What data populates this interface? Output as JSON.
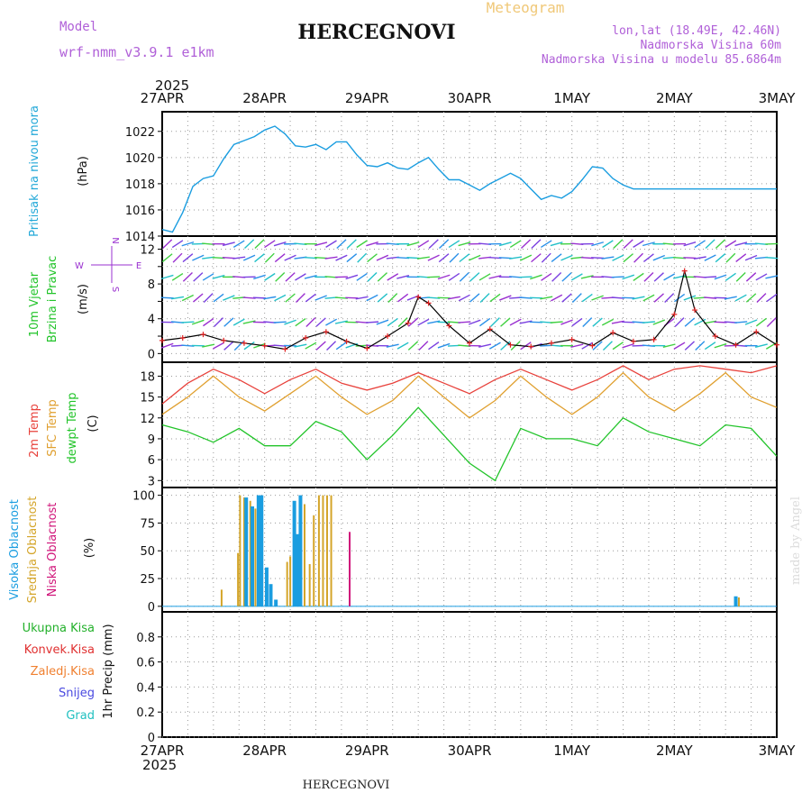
{
  "header": {
    "station_title": "HERCEGNOVI",
    "meteogram_label": "Meteogram",
    "model_label": "Model",
    "model_name": "wrf-nmm_v3.9.1 e1km",
    "coords": "lon,lat (18.49E, 42.46N)",
    "elevation": "Nadmorska Visina 60m",
    "model_elevation": "Nadmorska Visina u modelu 85.6864m"
  },
  "footer": {
    "station_title": "HERCEGNOVI",
    "credit": "made by Angel"
  },
  "time_axis": {
    "year": "2025",
    "labels": [
      "27APR",
      "28APR",
      "29APR",
      "30APR",
      "1MAY",
      "2MAY",
      "3MAY"
    ]
  },
  "colors": {
    "pressure": "#1a9de0",
    "temp2m": "#e8423c",
    "sfc_temp": "#e0a030",
    "dewpt": "#22c42a",
    "cloud_high": "#1a9de0",
    "cloud_mid": "#d4a52a",
    "cloud_low": "#d0157a",
    "wind_speed": "#e02020",
    "precip_total": "#22b02a",
    "precip_conv": "#e03030",
    "precip_frozen": "#f08030",
    "snow": "#4a4ae0",
    "grad": "#20c0c0",
    "wind_label": "#9a30d0"
  },
  "chart_data": [
    {
      "type": "line",
      "ylabel_left": "Pritisak na nivou mora",
      "unit": "(hPa)",
      "ylim": [
        1014,
        1023.5
      ],
      "yticks": [
        "1014",
        "1016",
        "1018",
        "1020",
        "1022"
      ],
      "x_days": [
        0,
        0.1,
        0.2,
        0.3,
        0.4,
        0.5,
        0.6,
        0.7,
        0.8,
        0.9,
        1.0,
        1.1,
        1.2,
        1.3,
        1.4,
        1.5,
        1.6,
        1.7,
        1.8,
        1.9,
        2.0,
        2.1,
        2.2,
        2.3,
        2.4,
        2.5,
        2.6,
        2.7,
        2.8,
        2.9,
        3.0,
        3.1,
        3.2,
        3.3,
        3.4,
        3.5,
        3.6,
        3.7,
        3.8,
        3.9,
        4.0,
        4.1,
        4.2,
        4.3,
        4.4,
        4.5,
        4.6,
        4.7,
        4.8,
        4.9,
        5.0,
        5.1,
        5.2,
        5.3,
        5.4,
        5.5,
        5.6,
        5.7,
        5.8,
        5.9,
        6.0
      ],
      "values": [
        1014.5,
        1014.3,
        1015.8,
        1017.8,
        1018.4,
        1018.6,
        1019.9,
        1021.0,
        1021.3,
        1021.6,
        1022.1,
        1022.4,
        1021.8,
        1020.9,
        1020.8,
        1021.0,
        1020.6,
        1021.2,
        1021.2,
        1020.2,
        1019.4,
        1019.3,
        1019.6,
        1019.2,
        1019.1,
        1019.6,
        1020.0,
        1019.1,
        1018.3,
        1018.3,
        1017.9,
        1017.5,
        1018.0,
        1018.4,
        1018.8,
        1018.4,
        1017.6,
        1016.8,
        1017.1,
        1016.9,
        1017.4,
        1018.3,
        1019.3,
        1019.2,
        1018.4,
        1017.9,
        1017.6,
        1017.6,
        1017.6,
        1017.6,
        1017.6,
        1017.6,
        1017.6,
        1017.6,
        1017.6,
        1017.6,
        1017.6,
        1017.6,
        1017.6,
        1017.6,
        1017.6
      ]
    },
    {
      "type": "line",
      "ylabel_left": "10m Vjetar",
      "ylabel_left2": "Brzina i Pravac",
      "unit": "(m/s)",
      "compass": {
        "north": "N",
        "south": "S",
        "east": "E",
        "west": "W"
      },
      "ylim": [
        -1,
        13.5
      ],
      "yticks": [
        "0",
        "4",
        "8",
        "12"
      ],
      "yticks_minor": [
        "2",
        "6",
        "10"
      ],
      "x_days": [
        0,
        0.2,
        0.4,
        0.6,
        0.8,
        1.0,
        1.2,
        1.4,
        1.6,
        1.8,
        2.0,
        2.2,
        2.4,
        2.5,
        2.6,
        2.8,
        3.0,
        3.2,
        3.4,
        3.6,
        3.8,
        4.0,
        4.2,
        4.4,
        4.6,
        4.8,
        5.0,
        5.1,
        5.2,
        5.4,
        5.6,
        5.8,
        6.0
      ],
      "series": [
        {
          "values": [
            1.5,
            1.8,
            2.2,
            1.5,
            1.2,
            0.9,
            0.5,
            1.8,
            2.5,
            1.4,
            0.6,
            2.0,
            3.5,
            6.5,
            5.8,
            3.2,
            1.2,
            2.8,
            1.0,
            0.8,
            1.2,
            1.6,
            0.9,
            2.4,
            1.4,
            1.6,
            4.5,
            9.5,
            5.0,
            2.0,
            1.0,
            2.5,
            1.0
          ]
        }
      ]
    },
    {
      "type": "line",
      "ylabel_left": "2m Temp",
      "ylabel_left2": "SFC Temp",
      "ylabel_left3": "dewpt Temp",
      "unit": "(C)",
      "ylim": [
        2,
        20
      ],
      "yticks": [
        "3",
        "6",
        "9",
        "12",
        "15",
        "18"
      ],
      "x_days": [
        0,
        0.25,
        0.5,
        0.75,
        1.0,
        1.25,
        1.5,
        1.75,
        2.0,
        2.25,
        2.5,
        2.75,
        3.0,
        3.25,
        3.5,
        3.75,
        4.0,
        4.25,
        4.5,
        4.75,
        5.0,
        5.25,
        5.5,
        5.75,
        6.0
      ],
      "series": [
        {
          "name": "2m Temp",
          "values": [
            14.0,
            17.0,
            19.0,
            17.5,
            15.5,
            17.5,
            19.0,
            17.0,
            16.0,
            17.0,
            18.5,
            17.0,
            15.5,
            17.5,
            19.0,
            17.5,
            16.0,
            17.5,
            19.5,
            17.5,
            19.0,
            19.5,
            19.0,
            18.5,
            19.5
          ]
        },
        {
          "name": "SFC Temp",
          "values": [
            12.5,
            15.0,
            18.0,
            15.0,
            13.0,
            15.5,
            18.0,
            15.0,
            12.5,
            14.5,
            18.0,
            15.0,
            12.0,
            14.5,
            18.0,
            15.0,
            12.5,
            15.0,
            18.5,
            15.0,
            13.0,
            15.5,
            18.5,
            15.0,
            13.5
          ]
        },
        {
          "name": "dewpt Temp",
          "values": [
            11.0,
            10.0,
            8.5,
            10.5,
            8.0,
            8.0,
            11.5,
            10.0,
            6.0,
            9.5,
            13.5,
            9.5,
            5.5,
            3.0,
            10.5,
            9.0,
            9.0,
            8.0,
            12.0,
            10.0,
            9.0,
            8.0,
            11.0,
            10.5,
            6.5
          ]
        }
      ]
    },
    {
      "type": "bar",
      "ylabel_left": "Visoka Oblacnost",
      "ylabel_left2": "Srednja Oblacnost",
      "ylabel_left3": "Niska Oblacnost",
      "unit": "(%)",
      "ylim": [
        -5,
        107
      ],
      "yticks": [
        "0",
        "25",
        "50",
        "75",
        "100"
      ],
      "bars": [
        {
          "layer": "mid",
          "x": 0.58,
          "value": 15
        },
        {
          "layer": "mid",
          "x": 0.74,
          "value": 48
        },
        {
          "layer": "mid",
          "x": 0.76,
          "value": 100
        },
        {
          "layer": "mid",
          "x": 0.8,
          "value": 98
        },
        {
          "layer": "high",
          "x": 0.82,
          "value": 98
        },
        {
          "layer": "mid",
          "x": 0.86,
          "value": 95
        },
        {
          "layer": "high",
          "x": 0.88,
          "value": 90
        },
        {
          "layer": "mid",
          "x": 0.91,
          "value": 88
        },
        {
          "layer": "high",
          "x": 0.94,
          "value": 100
        },
        {
          "layer": "high",
          "x": 0.97,
          "value": 100
        },
        {
          "layer": "high",
          "x": 1.02,
          "value": 35
        },
        {
          "layer": "high",
          "x": 1.06,
          "value": 20
        },
        {
          "layer": "high",
          "x": 1.11,
          "value": 6
        },
        {
          "layer": "mid",
          "x": 1.22,
          "value": 40
        },
        {
          "layer": "mid",
          "x": 1.25,
          "value": 45
        },
        {
          "layer": "high",
          "x": 1.29,
          "value": 95
        },
        {
          "layer": "high",
          "x": 1.32,
          "value": 65
        },
        {
          "layer": "high",
          "x": 1.35,
          "value": 100
        },
        {
          "layer": "mid",
          "x": 1.39,
          "value": 92
        },
        {
          "layer": "mid",
          "x": 1.44,
          "value": 38
        },
        {
          "layer": "mid",
          "x": 1.48,
          "value": 82
        },
        {
          "layer": "mid",
          "x": 1.53,
          "value": 100
        },
        {
          "layer": "mid",
          "x": 1.57,
          "value": 100
        },
        {
          "layer": "mid",
          "x": 1.61,
          "value": 100
        },
        {
          "layer": "mid",
          "x": 1.65,
          "value": 100
        },
        {
          "layer": "low",
          "x": 1.83,
          "value": 67
        },
        {
          "layer": "high",
          "x": 5.6,
          "value": 9
        },
        {
          "layer": "mid",
          "x": 5.63,
          "value": 8
        }
      ]
    },
    {
      "type": "bar",
      "ylabel_right": "1hr Precip (mm)",
      "legend": [
        "Ukupna Kisa",
        "Konvek.Kisa",
        "Zaledj.Kisa",
        "Snijeg",
        "Grad"
      ],
      "ylim": [
        0,
        1.0
      ],
      "yticks": [
        "0",
        "0.2",
        "0.4",
        "0.6",
        "0.8"
      ],
      "values": []
    }
  ]
}
